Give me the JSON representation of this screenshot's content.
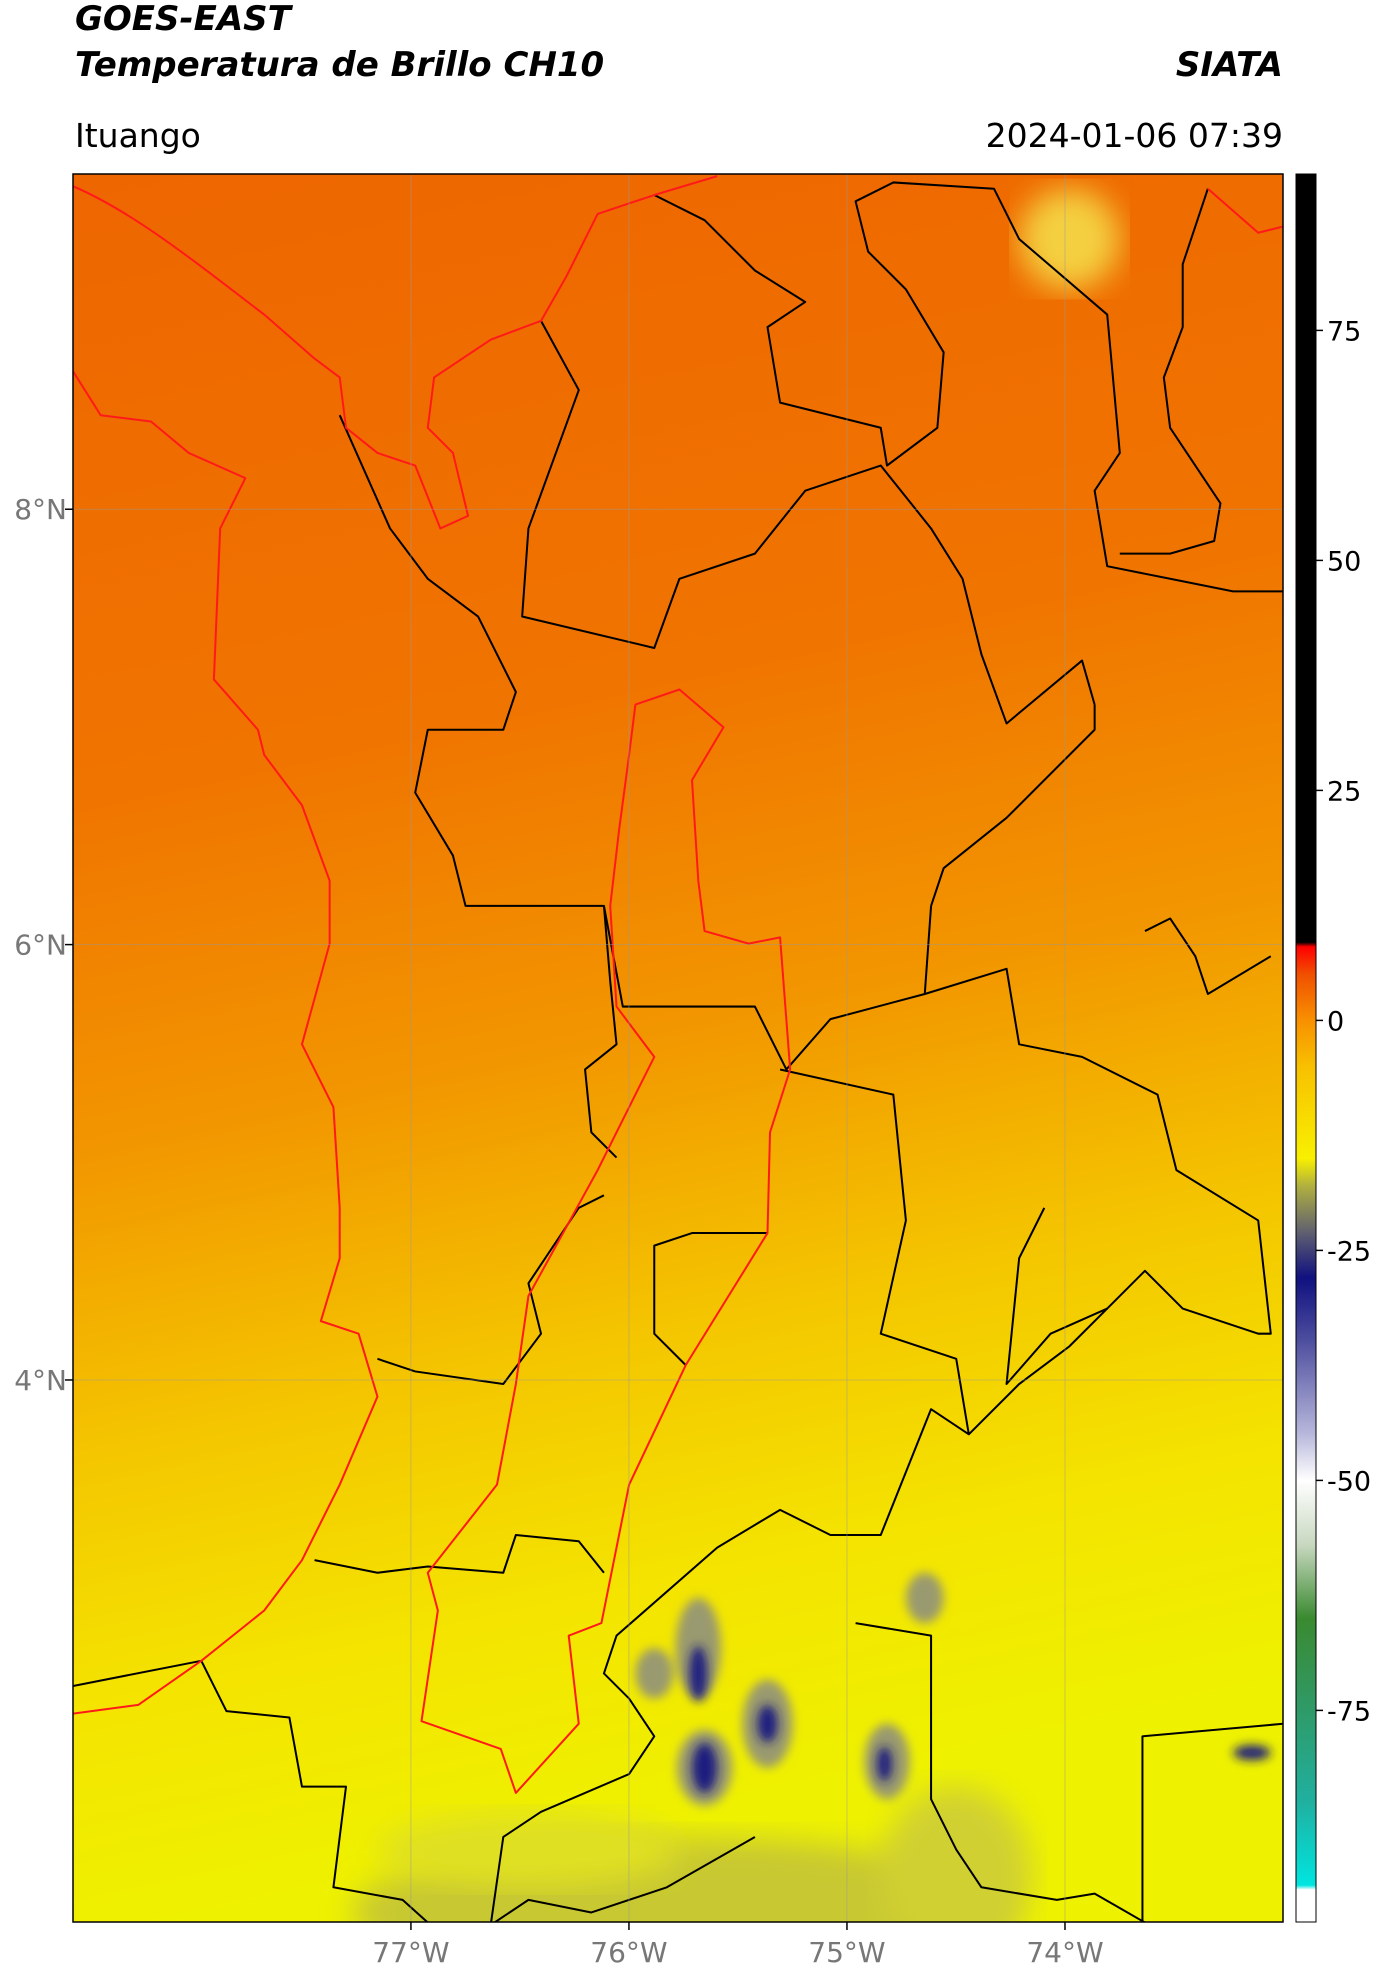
{
  "header": {
    "title": "GOES-EAST",
    "subtitle": "Temperatura de Brillo CH10",
    "source": "SIATA",
    "location": "Ituango",
    "datetime": "2024-01-06 07:39"
  },
  "map": {
    "xlim": [
      -78.55,
      -73.0
    ],
    "ylim": [
      1.51,
      9.54
    ],
    "xticks": [
      {
        "value": -77,
        "label": "77°W"
      },
      {
        "value": -76,
        "label": "76°W"
      },
      {
        "value": -75,
        "label": "75°W"
      },
      {
        "value": -74,
        "label": "74°W"
      }
    ],
    "yticks": [
      {
        "value": 4,
        "label": "4°N"
      },
      {
        "value": 6,
        "label": "6°N"
      },
      {
        "value": 8,
        "label": "8°N"
      }
    ],
    "grid": true
  },
  "colorbar": {
    "lim": [
      -98,
      92
    ],
    "ticks": [
      -75,
      -50,
      -25,
      0,
      25,
      50,
      75
    ],
    "colors": [
      {
        "value": -98,
        "color": "#ffffff"
      },
      {
        "value": -94.5,
        "color": "#ffffff"
      },
      {
        "value": -94,
        "color": "#00e5e0"
      },
      {
        "value": -85,
        "color": "#20b0a0"
      },
      {
        "value": -75,
        "color": "#2f9a68"
      },
      {
        "value": -65,
        "color": "#3a8a30"
      },
      {
        "value": -57,
        "color": "#c8d8c0"
      },
      {
        "value": -50,
        "color": "#ffffff"
      },
      {
        "value": -45,
        "color": "#b8b8dc"
      },
      {
        "value": -35,
        "color": "#5050a0"
      },
      {
        "value": -28,
        "color": "#101080"
      },
      {
        "value": -23,
        "color": "#606070"
      },
      {
        "value": -18,
        "color": "#b0b040"
      },
      {
        "value": -15,
        "color": "#f8f000"
      },
      {
        "value": -5,
        "color": "#f8c000"
      },
      {
        "value": 0,
        "color": "#f89000"
      },
      {
        "value": 5,
        "color": "#f05000"
      },
      {
        "value": 8,
        "color": "#ff0000"
      },
      {
        "value": 8.5,
        "color": "#000000"
      },
      {
        "value": 92,
        "color": "#000000"
      }
    ]
  }
}
